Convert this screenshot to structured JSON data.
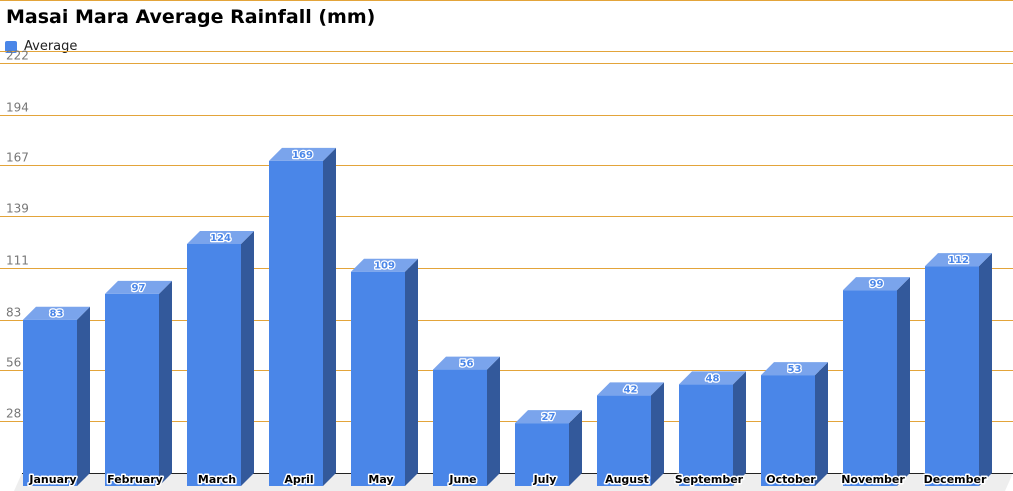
{
  "chart_data": {
    "type": "bar",
    "title": "Masai Mara Average Rainfall (mm)",
    "categories": [
      "January",
      "February",
      "March",
      "April",
      "May",
      "June",
      "July",
      "August",
      "September",
      "October",
      "November",
      "December"
    ],
    "series": [
      {
        "name": "Average",
        "values": [
          83,
          97,
          124,
          169,
          109,
          56,
          27,
          42,
          48,
          53,
          99,
          112
        ]
      }
    ],
    "yticks": [
      28,
      56,
      83,
      111,
      139,
      167,
      194,
      222
    ],
    "ylim": [
      0,
      222
    ],
    "xlabel": "",
    "ylabel": "",
    "grid": true,
    "legend_position": "top-left",
    "style": "3d",
    "colors": {
      "bar_front": "#4a86e8",
      "bar_top": "#7aa4ec",
      "bar_side": "#33599b",
      "grid": "#e3a43a",
      "value_label": "#4a86e8",
      "floor": "#eeeeee"
    }
  }
}
